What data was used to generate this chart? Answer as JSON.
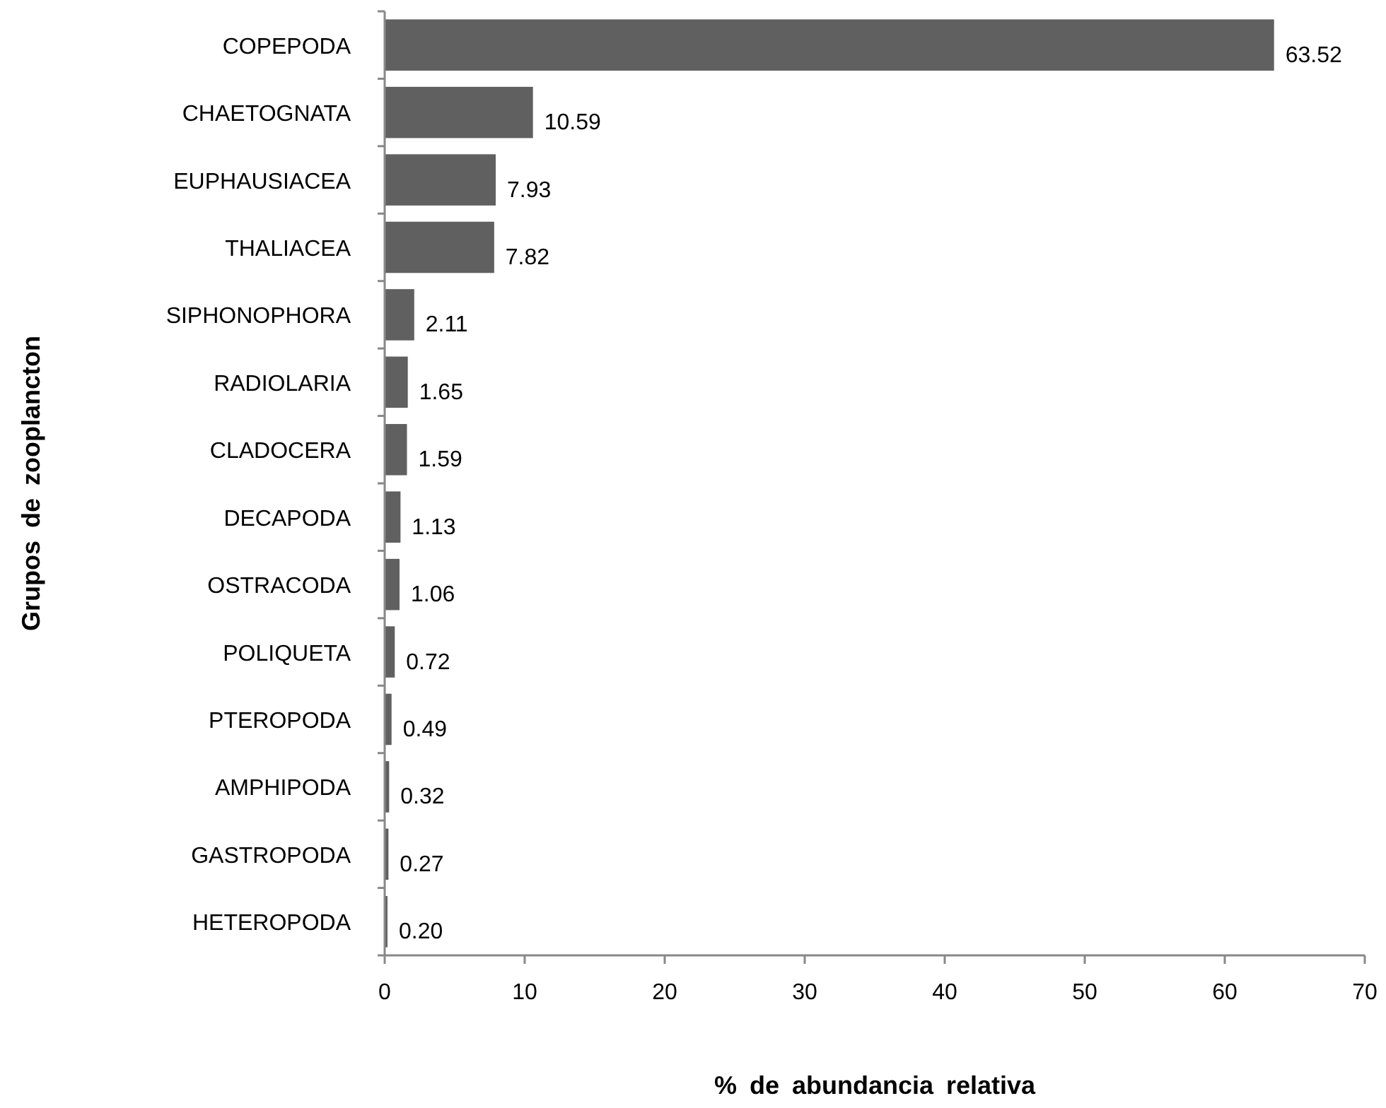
{
  "chart_data": {
    "type": "bar",
    "orientation": "horizontal",
    "xlabel": "% de abundancia relativa",
    "ylabel": "Grupos de zooplancton",
    "categories": [
      "COPEPODA",
      "CHAETOGNATA",
      "EUPHAUSIACEA",
      "THALIACEA",
      "SIPHONOPHORA",
      "RADIOLARIA",
      "CLADOCERA",
      "DECAPODA",
      "OSTRACODA",
      "POLIQUETA",
      "PTEROPODA",
      "AMPHIPODA",
      "GASTROPODA",
      "HETEROPODA"
    ],
    "values": [
      63.52,
      10.59,
      7.93,
      7.82,
      2.11,
      1.65,
      1.59,
      1.13,
      1.06,
      0.72,
      0.49,
      0.32,
      0.27,
      0.2
    ],
    "value_labels": [
      "63.52",
      "10.59",
      "7.93",
      "7.82",
      "2.11",
      "1.65",
      "1.59",
      "1.13",
      "1.06",
      "0.72",
      "0.49",
      "0.32",
      "0.27",
      "0.20"
    ],
    "color": "#606060",
    "xlim": [
      0,
      70
    ],
    "xticks": [
      0,
      10,
      20,
      30,
      40,
      50,
      60,
      70
    ],
    "grid": false
  }
}
